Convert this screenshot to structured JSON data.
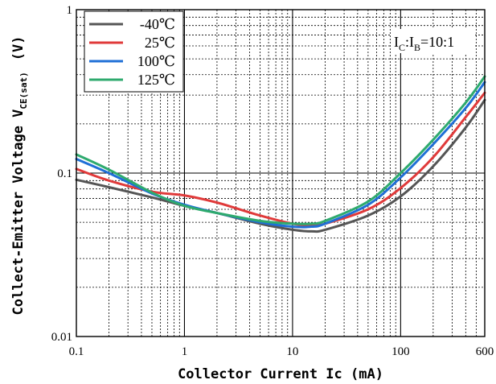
{
  "chart_data": {
    "type": "line",
    "title": "",
    "xlabel": "Collector Current Ic (mA)",
    "ylabel_main": "Collect-Emitter Voltage V",
    "ylabel_sub": "CE(sat)",
    "ylabel_unit": "(V)",
    "x_scale": "log",
    "y_scale": "log",
    "xlim": [
      0.1,
      600
    ],
    "ylim": [
      0.01,
      1
    ],
    "x_ticks": [
      {
        "value": 0.1,
        "label": "0.1"
      },
      {
        "value": 1,
        "label": "1"
      },
      {
        "value": 10,
        "label": "10"
      },
      {
        "value": 100,
        "label": "100"
      },
      {
        "value": 600,
        "label": "600"
      }
    ],
    "y_ticks": [
      {
        "value": 0.01,
        "label": "0.01"
      },
      {
        "value": 0.1,
        "label": "0.1"
      },
      {
        "value": 1,
        "label": "1"
      }
    ],
    "grid": true,
    "legend": "top-left",
    "annotation": {
      "parts": [
        {
          "text": "I",
          "sub": false
        },
        {
          "text": "C",
          "sub": true
        },
        {
          "text": ":I",
          "sub": false
        },
        {
          "text": "B",
          "sub": true
        },
        {
          "text": "=10:1",
          "sub": false
        }
      ]
    },
    "series": [
      {
        "name": "-40℃",
        "color": "#555555",
        "x": [
          0.1,
          0.2,
          0.5,
          1,
          2,
          5,
          10,
          15,
          20,
          50,
          100,
          200,
          400,
          600
        ],
        "y": [
          0.091,
          0.082,
          0.071,
          0.063,
          0.057,
          0.049,
          0.045,
          0.044,
          0.045,
          0.055,
          0.072,
          0.11,
          0.19,
          0.28
        ]
      },
      {
        "name": "25℃",
        "color": "#e03a3a",
        "x": [
          0.1,
          0.2,
          0.5,
          1,
          2,
          5,
          10,
          15,
          20,
          50,
          100,
          200,
          400,
          600
        ],
        "y": [
          0.106,
          0.09,
          0.077,
          0.073,
          0.066,
          0.055,
          0.049,
          0.048,
          0.049,
          0.06,
          0.081,
          0.125,
          0.22,
          0.31
        ]
      },
      {
        "name": "100℃",
        "color": "#1f6fd6",
        "x": [
          0.1,
          0.2,
          0.5,
          1,
          2,
          5,
          10,
          15,
          20,
          50,
          100,
          200,
          400,
          600
        ],
        "y": [
          0.122,
          0.1,
          0.075,
          0.064,
          0.057,
          0.05,
          0.047,
          0.047,
          0.049,
          0.064,
          0.094,
          0.15,
          0.25,
          0.36
        ]
      },
      {
        "name": "125℃",
        "color": "#2eaa6e",
        "x": [
          0.1,
          0.2,
          0.5,
          1,
          2,
          5,
          10,
          15,
          20,
          50,
          100,
          200,
          400,
          600
        ],
        "y": [
          0.13,
          0.105,
          0.076,
          0.063,
          0.057,
          0.051,
          0.049,
          0.049,
          0.051,
          0.067,
          0.1,
          0.16,
          0.27,
          0.39
        ]
      }
    ]
  }
}
